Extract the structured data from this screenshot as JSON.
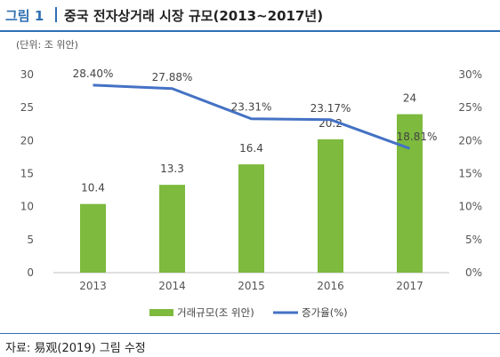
{
  "figure": {
    "label": "그림 1",
    "title": "중국 전자상거래 시장 규모(2013~2017년)"
  },
  "source": "자료: 易观(2019) 그림 수정",
  "chart_data": {
    "type": "bar",
    "categories": [
      "2013",
      "2014",
      "2015",
      "2016",
      "2017"
    ],
    "unit": "(단위: 조 위안)",
    "series": [
      {
        "name": "거래규모(조 위안)",
        "type": "bar",
        "axis": "left",
        "color": "#7dba3d",
        "values": [
          10.4,
          13.3,
          16.4,
          20.2,
          24
        ],
        "labels": [
          "10.4",
          "13.3",
          "16.4",
          "20.2",
          "24"
        ]
      },
      {
        "name": "증가율(%)",
        "type": "line",
        "axis": "right",
        "color": "#4472c4",
        "values": [
          28.4,
          27.88,
          23.31,
          23.17,
          18.81
        ],
        "labels": [
          "28.40%",
          "27.88%",
          "23.31%",
          "23.17%",
          "18.81%"
        ]
      }
    ],
    "y_left": {
      "min": 0,
      "max": 30,
      "ticks": [
        "0",
        "5",
        "10",
        "15",
        "20",
        "25",
        "30"
      ]
    },
    "y_right": {
      "min": 0,
      "max": 30,
      "ticks": [
        "0%",
        "5%",
        "10%",
        "15%",
        "20%",
        "25%",
        "30%"
      ]
    },
    "grid": false,
    "legend_position": "bottom"
  }
}
